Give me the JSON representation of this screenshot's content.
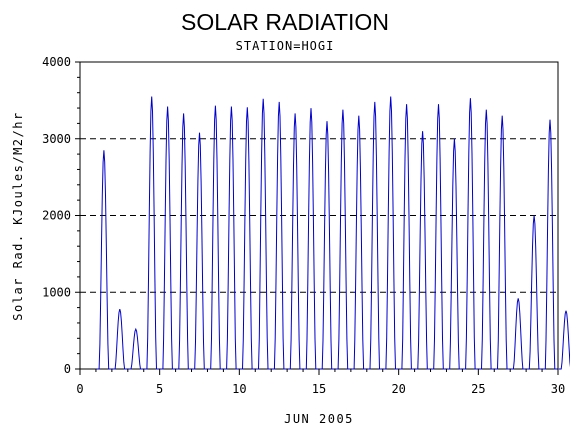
{
  "chart_data": {
    "type": "line",
    "title": "SOLAR RADIATION",
    "subtitle": "STATION=HOGI",
    "xlabel": "JUN 2005",
    "ylabel": "Solar Rad. KJoules/M2/hr",
    "xlim": [
      0,
      30
    ],
    "ylim": [
      0,
      4000
    ],
    "x_ticks": [
      0,
      5,
      10,
      15,
      20,
      25,
      30
    ],
    "y_ticks": [
      0,
      1000,
      2000,
      3000,
      4000
    ],
    "grid": "horizontal-dashed",
    "series_color": "#0000cc",
    "daily_peaks": [
      {
        "day": 1,
        "peak": 2850
      },
      {
        "day": 2,
        "peak": 780
      },
      {
        "day": 3,
        "peak": 520
      },
      {
        "day": 4,
        "peak": 3550
      },
      {
        "day": 5,
        "peak": 3420
      },
      {
        "day": 6,
        "peak": 3330
      },
      {
        "day": 7,
        "peak": 3080
      },
      {
        "day": 8,
        "peak": 3430
      },
      {
        "day": 9,
        "peak": 3420
      },
      {
        "day": 10,
        "peak": 3410
      },
      {
        "day": 11,
        "peak": 3520
      },
      {
        "day": 12,
        "peak": 3480
      },
      {
        "day": 13,
        "peak": 3330
      },
      {
        "day": 14,
        "peak": 3400
      },
      {
        "day": 15,
        "peak": 3230
      },
      {
        "day": 16,
        "peak": 3380
      },
      {
        "day": 17,
        "peak": 3300
      },
      {
        "day": 18,
        "peak": 3480
      },
      {
        "day": 19,
        "peak": 3550
      },
      {
        "day": 20,
        "peak": 3450
      },
      {
        "day": 21,
        "peak": 3100
      },
      {
        "day": 22,
        "peak": 3450
      },
      {
        "day": 23,
        "peak": 3000
      },
      {
        "day": 24,
        "peak": 3530
      },
      {
        "day": 25,
        "peak": 3380
      },
      {
        "day": 26,
        "peak": 3300
      },
      {
        "day": 27,
        "peak": 920
      },
      {
        "day": 28,
        "peak": 2000
      },
      {
        "day": 29,
        "peak": 3250
      },
      {
        "day": 30,
        "peak": 760
      }
    ]
  }
}
